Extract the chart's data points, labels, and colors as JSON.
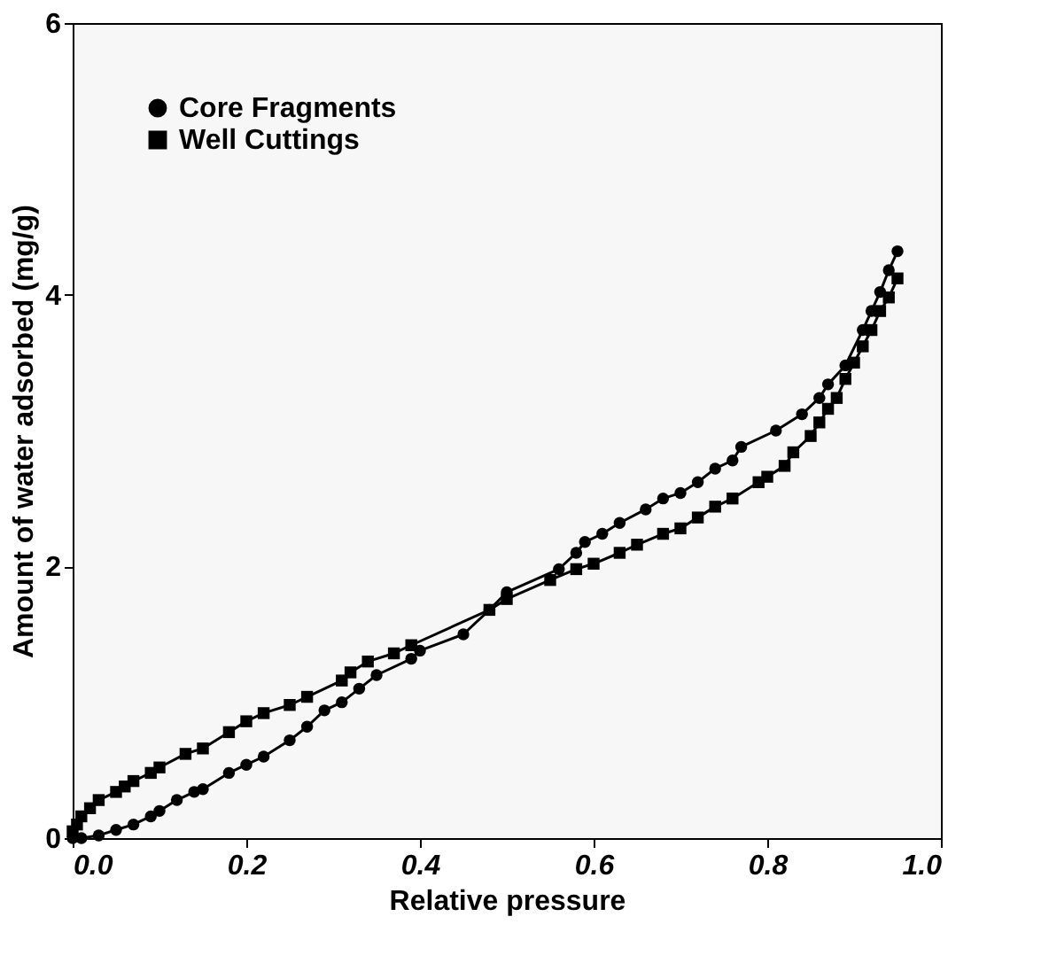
{
  "chart_data": {
    "type": "line",
    "xlabel": "Relative pressure",
    "ylabel": "Amount of water adsorbed (mg/g)",
    "xlim": [
      0,
      1
    ],
    "ylim": [
      0,
      6
    ],
    "xticks": [
      {
        "value": 0,
        "label": "0.0"
      },
      {
        "value": 0.2,
        "label": "0.2"
      },
      {
        "value": 0.4,
        "label": "0.4"
      },
      {
        "value": 0.6,
        "label": "0.6"
      },
      {
        "value": 0.8,
        "label": "0.8"
      },
      {
        "value": 1,
        "label": "1.0"
      }
    ],
    "yticks": [
      0,
      2,
      4,
      6
    ],
    "grid": false,
    "legend": "top left",
    "line_style": "solid",
    "series": [
      {
        "name": "Core Fragments",
        "color": "#000000",
        "marker": "circle",
        "x": [
          0,
          0.01,
          0.03,
          0.05,
          0.07,
          0.09,
          0.1,
          0.12,
          0.14,
          0.15,
          0.18,
          0.2,
          0.22,
          0.25,
          0.27,
          0.29,
          0.31,
          0.33,
          0.35,
          0.39,
          0.4,
          0.45,
          0.48,
          0.5,
          0.56,
          0.58,
          0.59,
          0.61,
          0.63,
          0.66,
          0.68,
          0.7,
          0.72,
          0.74,
          0.76,
          0.77,
          0.81,
          0.84,
          0.86,
          0.87,
          0.89,
          0.91,
          0.92,
          0.93,
          0.94,
          0.95
        ],
        "values": [
          0,
          0,
          0.02,
          0.06,
          0.1,
          0.16,
          0.2,
          0.28,
          0.34,
          0.36,
          0.48,
          0.54,
          0.6,
          0.72,
          0.82,
          0.94,
          1.0,
          1.1,
          1.2,
          1.32,
          1.38,
          1.5,
          1.68,
          1.81,
          1.98,
          2.1,
          2.18,
          2.24,
          2.32,
          2.42,
          2.5,
          2.54,
          2.62,
          2.72,
          2.78,
          2.88,
          3.0,
          3.12,
          3.24,
          3.34,
          3.48,
          3.74,
          3.88,
          4.02,
          4.18,
          4.32
        ]
      },
      {
        "name": "Well Cuttings",
        "color": "#000000",
        "marker": "square",
        "x": [
          0,
          0.005,
          0.01,
          0.02,
          0.03,
          0.05,
          0.06,
          0.07,
          0.09,
          0.1,
          0.13,
          0.15,
          0.18,
          0.2,
          0.22,
          0.25,
          0.27,
          0.31,
          0.32,
          0.34,
          0.37,
          0.39,
          0.48,
          0.5,
          0.55,
          0.58,
          0.6,
          0.63,
          0.65,
          0.68,
          0.7,
          0.72,
          0.74,
          0.76,
          0.79,
          0.8,
          0.82,
          0.83,
          0.85,
          0.86,
          0.87,
          0.88,
          0.89,
          0.9,
          0.91,
          0.92,
          0.93,
          0.94,
          0.95
        ],
        "values": [
          0.05,
          0.1,
          0.16,
          0.22,
          0.28,
          0.34,
          0.38,
          0.42,
          0.48,
          0.52,
          0.62,
          0.66,
          0.78,
          0.86,
          0.92,
          0.98,
          1.04,
          1.16,
          1.22,
          1.3,
          1.36,
          1.42,
          1.68,
          1.76,
          1.9,
          1.98,
          2.02,
          2.1,
          2.16,
          2.24,
          2.28,
          2.36,
          2.44,
          2.5,
          2.62,
          2.66,
          2.74,
          2.84,
          2.96,
          3.06,
          3.16,
          3.24,
          3.38,
          3.5,
          3.62,
          3.74,
          3.88,
          3.98,
          4.12
        ]
      }
    ]
  }
}
